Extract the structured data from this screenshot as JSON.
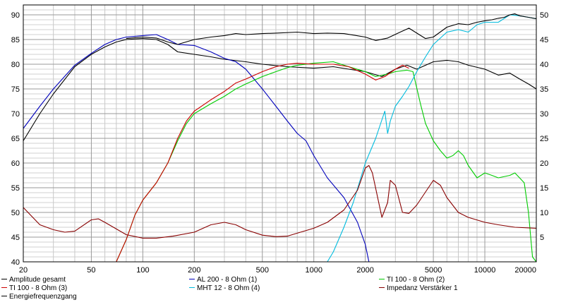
{
  "chart_data": {
    "type": "line",
    "x_scale": "log",
    "xlim": [
      20,
      20000
    ],
    "x_ticks": [
      20,
      50,
      100,
      200,
      500,
      1000,
      2000,
      5000,
      10000,
      20000
    ],
    "y_left_lim": [
      40,
      92
    ],
    "y_left_ticks": [
      40,
      45,
      50,
      55,
      60,
      65,
      70,
      75,
      80,
      85,
      90
    ],
    "y_right_lim": [
      0,
      52
    ],
    "y_right_ticks": [
      5,
      10,
      15,
      20,
      25,
      30,
      35,
      40,
      45,
      50
    ],
    "grid": true,
    "legend_position": "bottom",
    "series": [
      {
        "name": "Amplitude gesamt",
        "color": "#000000",
        "axis": "left",
        "points": [
          [
            20,
            64.5
          ],
          [
            25,
            70
          ],
          [
            30,
            74
          ],
          [
            40,
            79.5
          ],
          [
            50,
            82
          ],
          [
            60,
            83.5
          ],
          [
            70,
            84.5
          ],
          [
            80,
            85
          ],
          [
            100,
            85.2
          ],
          [
            120,
            85
          ],
          [
            140,
            84
          ],
          [
            160,
            82.5
          ],
          [
            200,
            82
          ],
          [
            250,
            81.5
          ],
          [
            300,
            81
          ],
          [
            400,
            80.5
          ],
          [
            500,
            80
          ],
          [
            700,
            79.5
          ],
          [
            1000,
            79.2
          ],
          [
            1300,
            79.5
          ],
          [
            1600,
            79
          ],
          [
            2000,
            78.5
          ],
          [
            2500,
            77.5
          ],
          [
            3000,
            79
          ],
          [
            3500,
            79.8
          ],
          [
            4000,
            79
          ],
          [
            5000,
            80.5
          ],
          [
            6000,
            80.8
          ],
          [
            7000,
            80.5
          ],
          [
            8000,
            79.8
          ],
          [
            10000,
            79
          ],
          [
            12000,
            77.8
          ],
          [
            14000,
            78.2
          ],
          [
            16000,
            77
          ],
          [
            18000,
            76
          ],
          [
            20000,
            75
          ]
        ]
      },
      {
        "name": "AL 200 - 8 Ohm (1)",
        "color": "#0000bb",
        "axis": "left",
        "points": [
          [
            20,
            67
          ],
          [
            25,
            71.5
          ],
          [
            30,
            75
          ],
          [
            40,
            79.8
          ],
          [
            50,
            82.2
          ],
          [
            60,
            84
          ],
          [
            70,
            85
          ],
          [
            80,
            85.5
          ],
          [
            100,
            85.8
          ],
          [
            120,
            86
          ],
          [
            140,
            85
          ],
          [
            160,
            84
          ],
          [
            200,
            83.8
          ],
          [
            250,
            82.5
          ],
          [
            300,
            81.2
          ],
          [
            350,
            80.5
          ],
          [
            400,
            79
          ],
          [
            500,
            75
          ],
          [
            600,
            71.5
          ],
          [
            700,
            68.5
          ],
          [
            800,
            66
          ],
          [
            900,
            64.5
          ],
          [
            1000,
            61.5
          ],
          [
            1200,
            57
          ],
          [
            1500,
            53
          ],
          [
            1800,
            48
          ],
          [
            2000,
            43.5
          ],
          [
            2100,
            40
          ],
          [
            2500,
            40
          ],
          [
            20000,
            40
          ]
        ]
      },
      {
        "name": "TI 100 - 8 Ohm (2)",
        "color": "#00cc00",
        "axis": "left",
        "points": [
          [
            20,
            40
          ],
          [
            70,
            40
          ],
          [
            80,
            44.5
          ],
          [
            90,
            49.5
          ],
          [
            100,
            52.5
          ],
          [
            120,
            56
          ],
          [
            140,
            60
          ],
          [
            160,
            64.5
          ],
          [
            180,
            68
          ],
          [
            200,
            70
          ],
          [
            250,
            72
          ],
          [
            300,
            73.5
          ],
          [
            350,
            75
          ],
          [
            400,
            76
          ],
          [
            500,
            77.5
          ],
          [
            600,
            78.5
          ],
          [
            700,
            79.3
          ],
          [
            800,
            79.8
          ],
          [
            1000,
            80.2
          ],
          [
            1300,
            80.5
          ],
          [
            1600,
            79.5
          ],
          [
            2000,
            78.5
          ],
          [
            2300,
            77.5
          ],
          [
            2700,
            78
          ],
          [
            3000,
            78.5
          ],
          [
            3500,
            78.8
          ],
          [
            3800,
            78.5
          ],
          [
            4200,
            72
          ],
          [
            4500,
            68
          ],
          [
            5000,
            64.5
          ],
          [
            5500,
            62.5
          ],
          [
            6000,
            61
          ],
          [
            6500,
            61.5
          ],
          [
            7000,
            62.5
          ],
          [
            7500,
            61.5
          ],
          [
            8000,
            59.5
          ],
          [
            9000,
            57
          ],
          [
            10000,
            58
          ],
          [
            11000,
            57.5
          ],
          [
            12000,
            57
          ],
          [
            14000,
            57.5
          ],
          [
            15000,
            58
          ],
          [
            17000,
            56
          ],
          [
            18000,
            50
          ],
          [
            19000,
            41
          ],
          [
            20000,
            40
          ]
        ]
      },
      {
        "name": "TI 100 - 8 Ohm (3)",
        "color": "#cc0000",
        "axis": "left",
        "points": [
          [
            20,
            40
          ],
          [
            70,
            40
          ],
          [
            80,
            44.5
          ],
          [
            90,
            49.5
          ],
          [
            100,
            52.5
          ],
          [
            120,
            56
          ],
          [
            140,
            60
          ],
          [
            160,
            65
          ],
          [
            180,
            68.5
          ],
          [
            200,
            70.5
          ],
          [
            250,
            72.8
          ],
          [
            300,
            74.5
          ],
          [
            350,
            76.2
          ],
          [
            400,
            77
          ],
          [
            500,
            78.5
          ],
          [
            600,
            79.5
          ],
          [
            700,
            80
          ],
          [
            800,
            80.2
          ],
          [
            1000,
            80
          ],
          [
            1300,
            80
          ],
          [
            1600,
            79.5
          ],
          [
            2000,
            78
          ],
          [
            2300,
            76.8
          ],
          [
            2600,
            77.5
          ],
          [
            3000,
            79
          ],
          [
            3300,
            79.8
          ],
          [
            3600,
            79.2
          ]
        ]
      },
      {
        "name": "MHT 12 - 8 Ohm (4)",
        "color": "#00bbdd",
        "axis": "left",
        "points": [
          [
            20,
            40
          ],
          [
            1200,
            40
          ],
          [
            1300,
            42
          ],
          [
            1500,
            47
          ],
          [
            1700,
            52
          ],
          [
            2000,
            60
          ],
          [
            2300,
            65
          ],
          [
            2600,
            70.5
          ],
          [
            2700,
            66
          ],
          [
            2800,
            68.5
          ],
          [
            3000,
            71.5
          ],
          [
            3300,
            73.5
          ],
          [
            3600,
            75.5
          ],
          [
            4000,
            78.5
          ],
          [
            4500,
            81.5
          ],
          [
            5000,
            84
          ],
          [
            6000,
            86.5
          ],
          [
            7000,
            87
          ],
          [
            8000,
            86.5
          ],
          [
            9000,
            88
          ],
          [
            10000,
            88.5
          ],
          [
            12000,
            88.5
          ],
          [
            14000,
            90
          ],
          [
            16000,
            89.8
          ],
          [
            18000,
            89.5
          ],
          [
            20000,
            89.2
          ]
        ]
      },
      {
        "name": "Impedanz Verstärker 1",
        "color": "#880000",
        "axis": "right",
        "points": [
          [
            20,
            11
          ],
          [
            25,
            7.5
          ],
          [
            30,
            6.5
          ],
          [
            35,
            6
          ],
          [
            40,
            6.2
          ],
          [
            50,
            8.5
          ],
          [
            55,
            8.7
          ],
          [
            60,
            8
          ],
          [
            80,
            5.5
          ],
          [
            100,
            4.8
          ],
          [
            120,
            4.8
          ],
          [
            150,
            5.2
          ],
          [
            200,
            6
          ],
          [
            250,
            7.5
          ],
          [
            300,
            8
          ],
          [
            350,
            7.5
          ],
          [
            400,
            6.5
          ],
          [
            500,
            5.4
          ],
          [
            600,
            5.1
          ],
          [
            700,
            5.2
          ],
          [
            800,
            5.8
          ],
          [
            1000,
            6.8
          ],
          [
            1200,
            8
          ],
          [
            1500,
            10.5
          ],
          [
            1800,
            14.5
          ],
          [
            2000,
            19
          ],
          [
            2100,
            19.5
          ],
          [
            2200,
            18
          ],
          [
            2500,
            9
          ],
          [
            2700,
            12
          ],
          [
            2800,
            16.5
          ],
          [
            3000,
            15.5
          ],
          [
            3300,
            10
          ],
          [
            3600,
            9.8
          ],
          [
            4000,
            11.5
          ],
          [
            5000,
            16.5
          ],
          [
            5500,
            15.5
          ],
          [
            6000,
            13
          ],
          [
            7000,
            10
          ],
          [
            8000,
            9
          ],
          [
            10000,
            8
          ],
          [
            12000,
            7.5
          ],
          [
            15000,
            7
          ],
          [
            20000,
            6.8
          ]
        ]
      },
      {
        "name": "Energiefrequenzgang",
        "color": "#000000",
        "axis": "left",
        "points": [
          [
            80,
            85.2
          ],
          [
            100,
            85.5
          ],
          [
            120,
            85.3
          ],
          [
            140,
            84.5
          ],
          [
            160,
            84
          ],
          [
            200,
            85
          ],
          [
            250,
            85.5
          ],
          [
            300,
            85.8
          ],
          [
            350,
            86.2
          ],
          [
            400,
            86
          ],
          [
            500,
            86.2
          ],
          [
            600,
            86.3
          ],
          [
            800,
            86.5
          ],
          [
            1000,
            86.2
          ],
          [
            1200,
            86.3
          ],
          [
            1500,
            86.2
          ],
          [
            2000,
            85.5
          ],
          [
            2300,
            84.8
          ],
          [
            2700,
            85.3
          ],
          [
            3200,
            86.5
          ],
          [
            3600,
            87.3
          ],
          [
            4000,
            86.3
          ],
          [
            4500,
            85.2
          ],
          [
            5000,
            85.5
          ],
          [
            6000,
            87.5
          ],
          [
            7000,
            88.2
          ],
          [
            8000,
            88
          ],
          [
            9000,
            88.5
          ],
          [
            10000,
            88.8
          ],
          [
            11000,
            89
          ],
          [
            12000,
            89.3
          ],
          [
            13000,
            89.5
          ],
          [
            14000,
            90
          ],
          [
            15000,
            90.2
          ],
          [
            16000,
            89.8
          ],
          [
            18000,
            89.5
          ],
          [
            20000,
            89.2
          ]
        ]
      }
    ]
  }
}
